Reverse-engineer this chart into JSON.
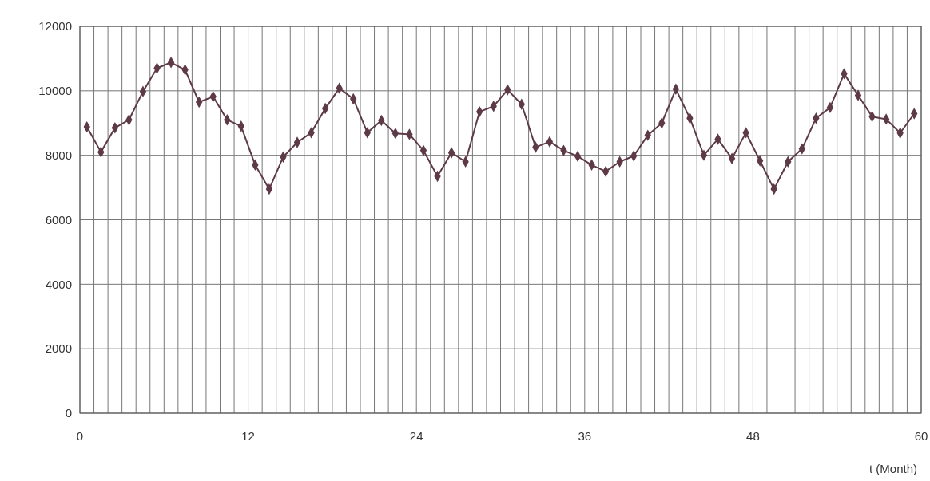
{
  "chart_data": {
    "type": "line",
    "xlabel": "t (Month)",
    "x": [
      0.5,
      1.5,
      2.5,
      3.5,
      4.5,
      5.5,
      6.5,
      7.5,
      8.5,
      9.5,
      10.5,
      11.5,
      12.5,
      13.5,
      14.5,
      15.5,
      16.5,
      17.5,
      18.5,
      19.5,
      20.5,
      21.5,
      22.5,
      23.5,
      24.5,
      25.5,
      26.5,
      27.5,
      28.5,
      29.5,
      30.5,
      31.5,
      32.5,
      33.5,
      34.5,
      35.5,
      36.5,
      37.5,
      38.5,
      39.5,
      40.5,
      41.5,
      42.5,
      43.5,
      44.5,
      45.5,
      46.5,
      47.5,
      48.5,
      49.5,
      50.5,
      51.5,
      52.5,
      53.5,
      54.5,
      55.5,
      56.5,
      57.5,
      58.5,
      59.5
    ],
    "series": [
      {
        "color": "#5e3a48",
        "values": [
          8880,
          8100,
          8850,
          9100,
          9980,
          10700,
          10880,
          10650,
          9650,
          9820,
          9100,
          8900,
          7700,
          6950,
          7950,
          8400,
          8700,
          9450,
          10080,
          9750,
          8700,
          9080,
          8680,
          8650,
          8150,
          7350,
          8080,
          7800,
          9350,
          9520,
          10030,
          9580,
          8250,
          8420,
          8150,
          7970,
          7700,
          7500,
          7800,
          7980,
          8620,
          9000,
          10050,
          9150,
          8000,
          8500,
          7900,
          8700,
          7830,
          6950,
          7800,
          8200,
          9150,
          9480,
          10530,
          9860,
          9200,
          9120,
          8690,
          9290
        ]
      }
    ],
    "xlim": [
      0,
      60
    ],
    "xticks": [
      0,
      12,
      24,
      36,
      48,
      60
    ],
    "ylim": [
      0,
      12000
    ],
    "yticks": [
      0,
      2000,
      4000,
      6000,
      8000,
      10000,
      12000
    ],
    "grid": true,
    "marker": "diamond",
    "line_style": "solid"
  }
}
